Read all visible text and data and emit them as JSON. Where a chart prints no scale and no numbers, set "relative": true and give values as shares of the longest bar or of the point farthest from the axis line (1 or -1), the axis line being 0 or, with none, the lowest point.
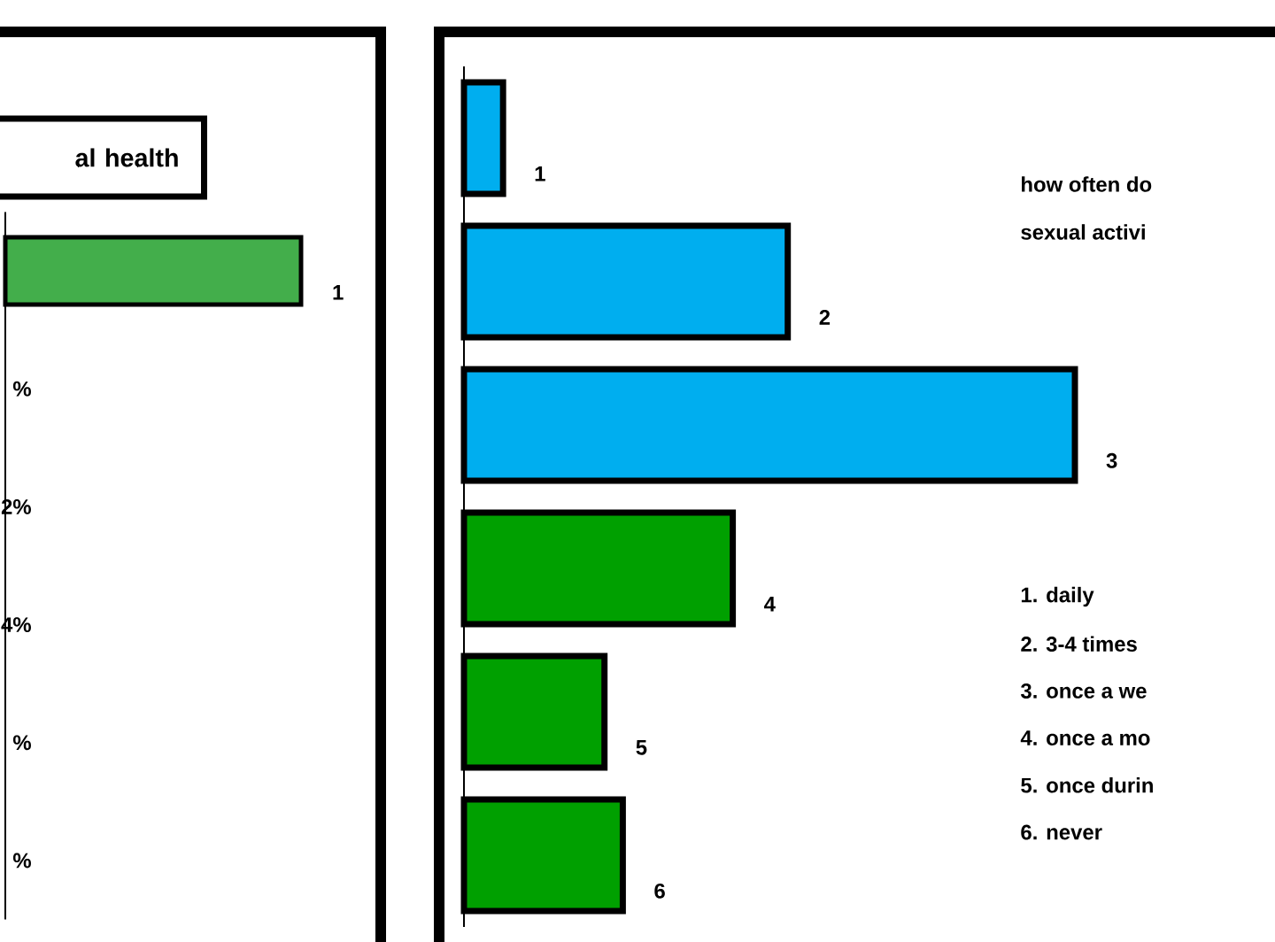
{
  "chart_data": [
    {
      "type": "bar",
      "orientation": "horizontal",
      "relative": true,
      "title": "al health",
      "categories": [
        "1"
      ],
      "values": [
        1
      ],
      "colors": [
        "#43ae4b"
      ],
      "annotations": [
        "%",
        "2%",
        "4%",
        "%",
        "%"
      ]
    },
    {
      "type": "bar",
      "orientation": "horizontal",
      "relative": true,
      "categories": [
        "1",
        "2",
        "3",
        "4",
        "5",
        "6"
      ],
      "values": [
        0.064,
        0.53,
        1,
        0.44,
        0.23,
        0.26
      ],
      "colors": [
        "#00aeef",
        "#00aeef",
        "#00aeef",
        "#00a000",
        "#00a000",
        "#00a000"
      ],
      "annotations": [
        "how often do",
        "sexual activi",
        "1. daily",
        "2. 3-4 times",
        "3. once a we",
        "4. once a mo",
        "5. once durin",
        "6. never"
      ]
    }
  ]
}
